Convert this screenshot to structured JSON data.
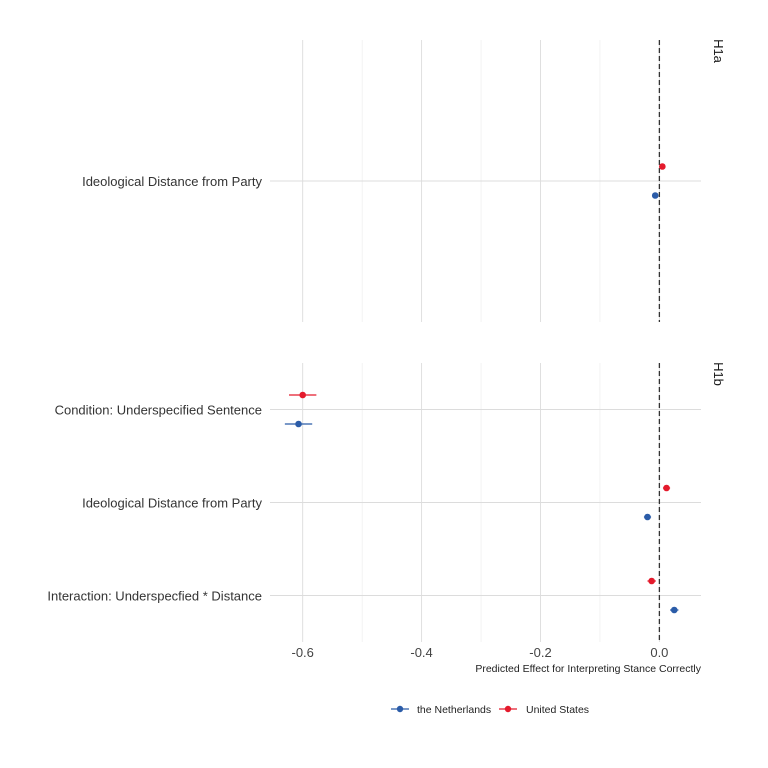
{
  "chart_data": {
    "type": "scatter",
    "subtype": "coefficient-plot-with-error-bars",
    "xlabel": "Predicted Effect for Interpreting Stance Correctly",
    "x_ticks": [
      -0.6,
      -0.4,
      -0.2,
      0.0
    ],
    "x_tick_labels": [
      "-0.6",
      "-0.4",
      "-0.2",
      "0.0"
    ],
    "xlim": [
      -0.655,
      0.07
    ],
    "reference_line": {
      "x": 0,
      "style": "dashed"
    },
    "grid": true,
    "legend_position": "bottom",
    "series": [
      {
        "name": "the Netherlands",
        "color": "#2b5ca8"
      },
      {
        "name": "United States",
        "color": "#e41a2c"
      }
    ],
    "panels": [
      {
        "label": "H1a",
        "terms": [
          {
            "label": "Ideological Distance from Party",
            "estimates": [
              {
                "series": "United States",
                "value": 0.005,
                "low": 0.0,
                "high": 0.01
              },
              {
                "series": "the Netherlands",
                "value": -0.007,
                "low": -0.012,
                "high": -0.002
              }
            ]
          }
        ]
      },
      {
        "label": "H1b",
        "terms": [
          {
            "label": "Condition: Underspecified Sentence",
            "estimates": [
              {
                "series": "United States",
                "value": -0.6,
                "low": -0.623,
                "high": -0.577
              },
              {
                "series": "the Netherlands",
                "value": -0.607,
                "low": -0.63,
                "high": -0.584
              }
            ]
          },
          {
            "label": "Ideological Distance from Party",
            "estimates": [
              {
                "series": "United States",
                "value": 0.012,
                "low": 0.006,
                "high": 0.018
              },
              {
                "series": "the Netherlands",
                "value": -0.02,
                "low": -0.026,
                "high": -0.014
              }
            ]
          },
          {
            "label": "Interaction: Underspecfied * Distance",
            "estimates": [
              {
                "series": "United States",
                "value": -0.013,
                "low": -0.02,
                "high": -0.006
              },
              {
                "series": "the Netherlands",
                "value": 0.025,
                "low": 0.018,
                "high": 0.032
              }
            ]
          }
        ]
      }
    ]
  }
}
